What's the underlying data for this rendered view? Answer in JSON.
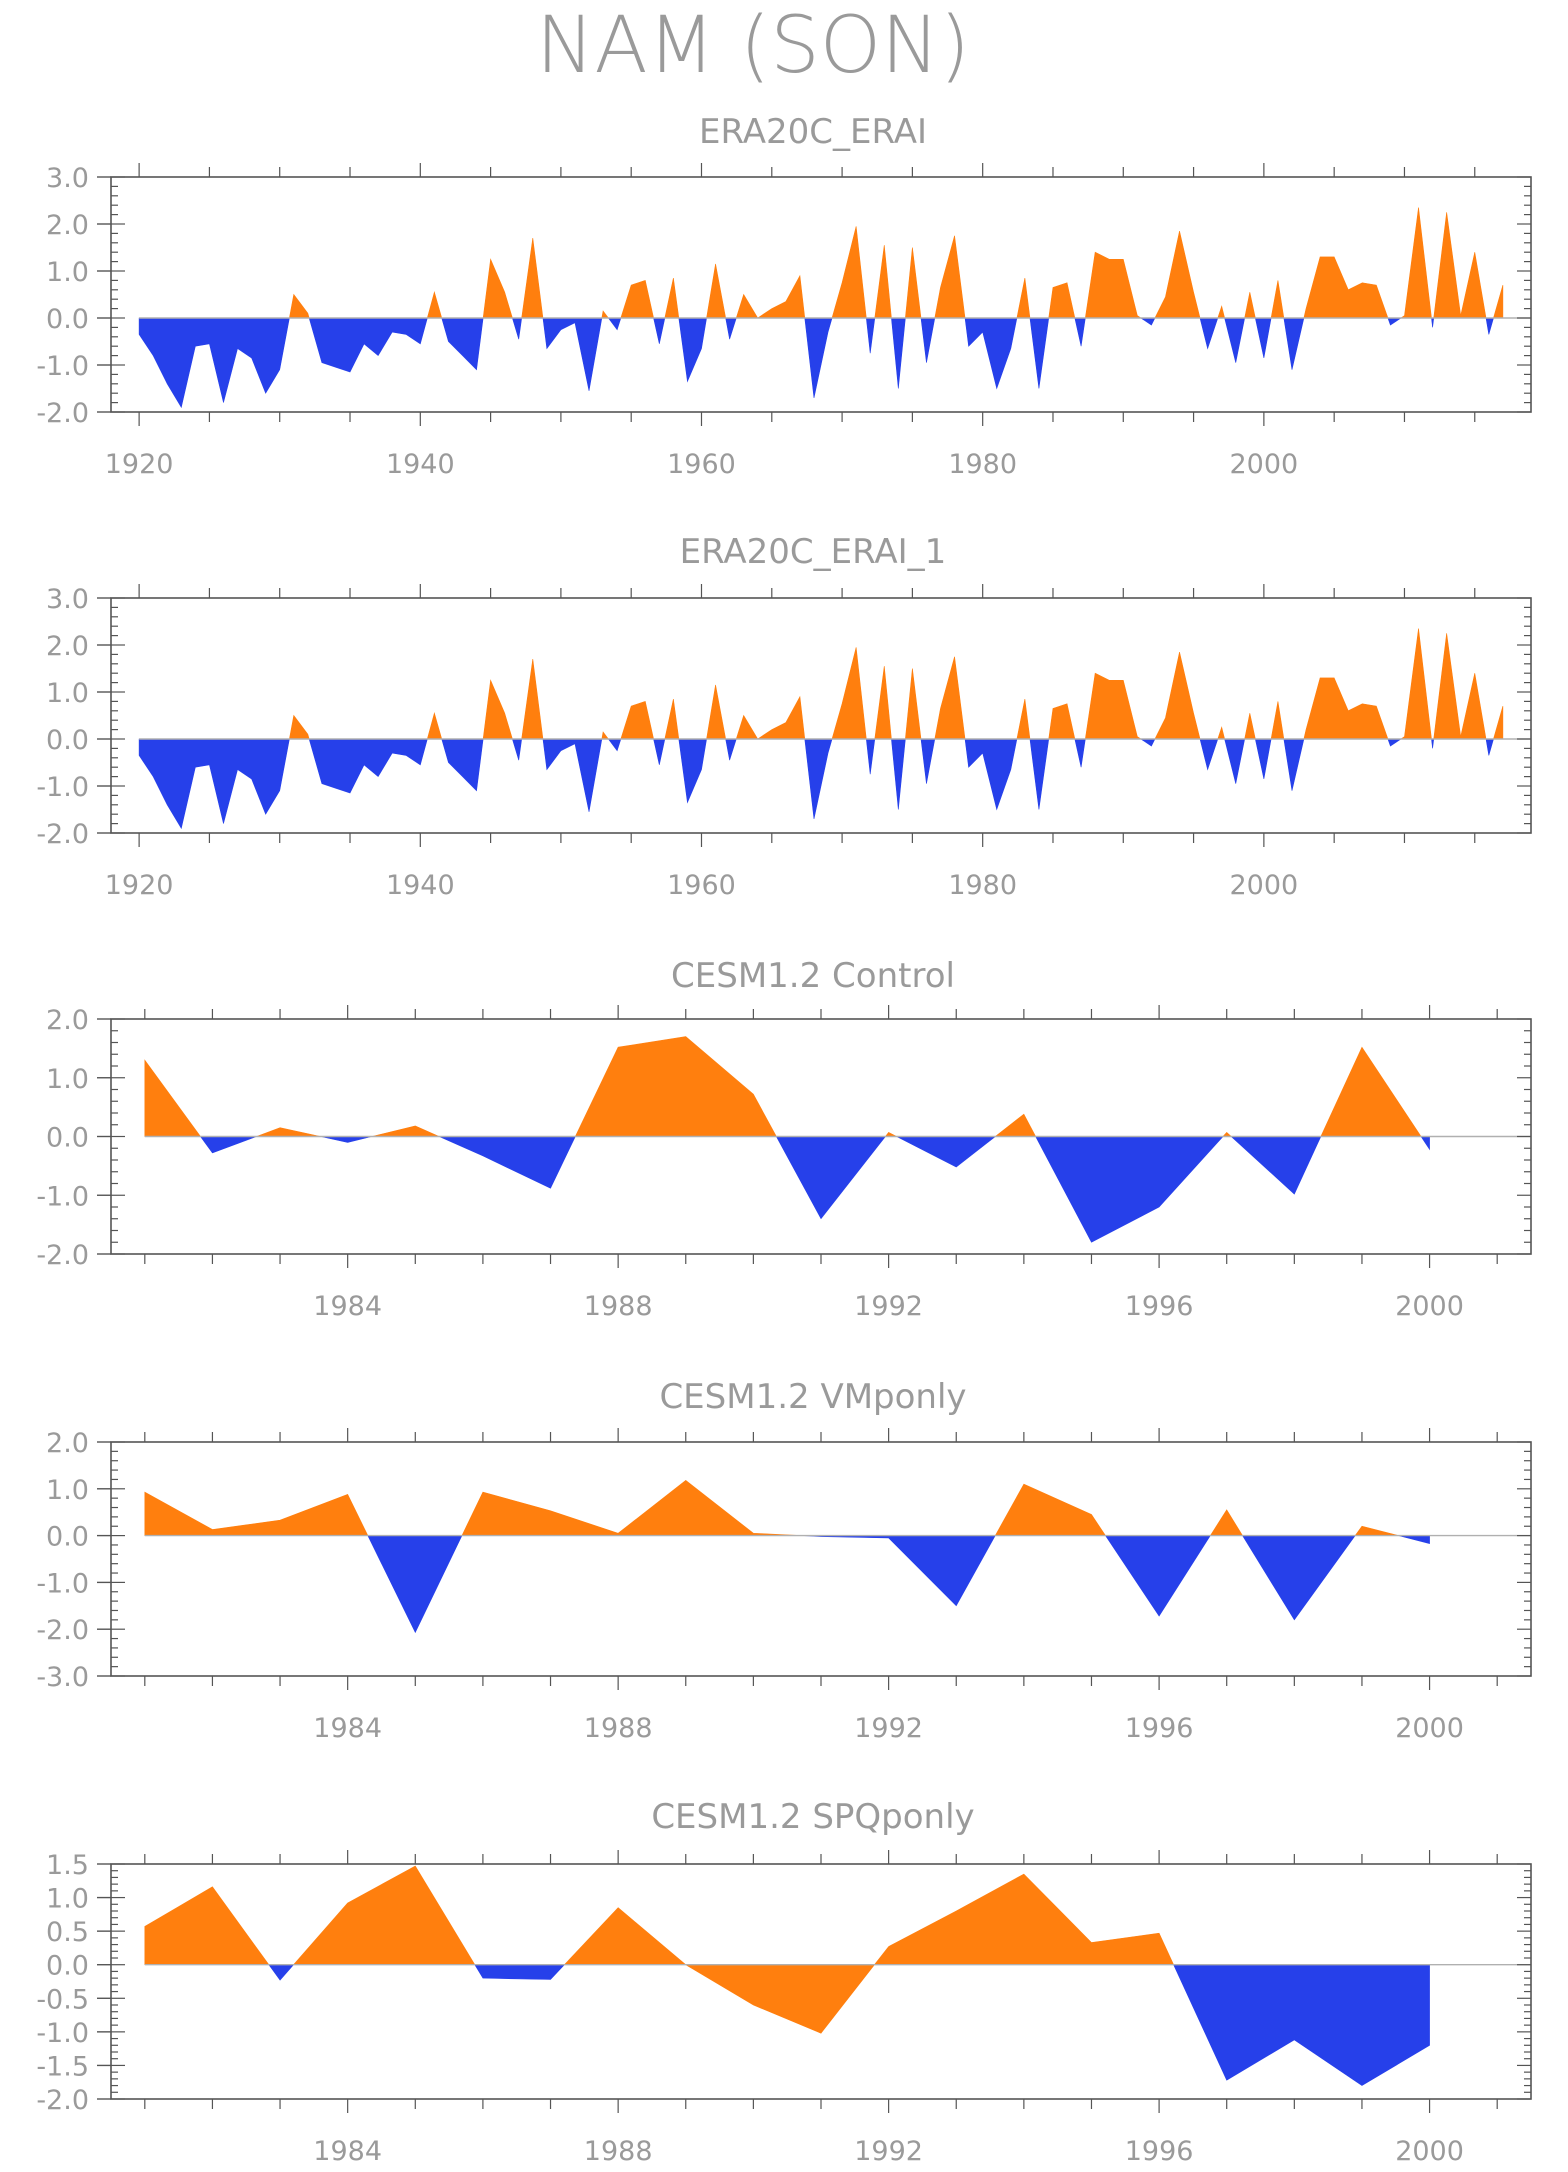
{
  "title": "NAM (SON)",
  "colors": {
    "positive": "#ff7f0e",
    "negative": "#2640ea",
    "axis": "#555555",
    "text": "#9a9a9a",
    "zero_line": "#b0b0b0"
  },
  "chart_data": [
    {
      "type": "area",
      "title": "ERA20C_ERAI",
      "xlim": [
        1918,
        2019
      ],
      "ylim": [
        -2.0,
        3.0
      ],
      "xticks": [
        1920,
        1940,
        1960,
        1980,
        2000
      ],
      "xtick_labels": [
        "1920",
        "1940",
        "1960",
        "1980",
        "2000"
      ],
      "yticks": [
        3.0,
        2.0,
        1.0,
        0.0,
        -1.0,
        -2.0
      ],
      "ytick_labels": [
        "3.0",
        "2.0",
        "1.0",
        "0.0",
        "-1.0",
        "-2.0"
      ],
      "x_start": 1920,
      "values": [
        -0.35,
        -0.8,
        -1.4,
        -1.9,
        -0.6,
        -0.55,
        -1.8,
        -0.65,
        -0.85,
        -1.6,
        -1.1,
        0.5,
        0.1,
        -0.95,
        -1.05,
        -1.15,
        -0.55,
        -0.8,
        -0.3,
        -0.35,
        -0.55,
        0.55,
        -0.5,
        -0.8,
        -1.1,
        1.25,
        0.55,
        -0.45,
        1.7,
        -0.65,
        -0.25,
        -0.1,
        -1.55,
        0.15,
        -0.25,
        0.7,
        0.8,
        -0.55,
        0.85,
        -1.35,
        -0.65,
        1.15,
        -0.45,
        0.5,
        0.0,
        0.2,
        0.35,
        0.9,
        -1.7,
        -0.3,
        0.75,
        1.95,
        -0.75,
        1.55,
        -1.5,
        1.5,
        -0.95,
        0.65,
        1.75,
        -0.6,
        -0.3,
        -1.5,
        -0.65,
        0.85,
        -1.5,
        0.65,
        0.75,
        -0.6,
        1.4,
        1.25,
        1.25,
        0.05,
        -0.15,
        0.45,
        1.85,
        0.55,
        -0.65,
        0.25,
        -0.95,
        0.55,
        -0.85,
        0.8,
        -1.1,
        0.2,
        1.3,
        1.3,
        0.6,
        0.75,
        0.7,
        -0.15,
        0.05,
        2.35,
        -0.2,
        2.25,
        0.05,
        1.4,
        -0.35,
        0.7
      ]
    },
    {
      "type": "area",
      "title": "ERA20C_ERAI_1",
      "xlim": [
        1918,
        2019
      ],
      "ylim": [
        -2.0,
        3.0
      ],
      "xticks": [
        1920,
        1940,
        1960,
        1980,
        2000
      ],
      "xtick_labels": [
        "1920",
        "1940",
        "1960",
        "1980",
        "2000"
      ],
      "yticks": [
        3.0,
        2.0,
        1.0,
        0.0,
        -1.0,
        -2.0
      ],
      "ytick_labels": [
        "3.0",
        "2.0",
        "1.0",
        "0.0",
        "-1.0",
        "-2.0"
      ],
      "x_start": 1920,
      "values": [
        -0.35,
        -0.8,
        -1.4,
        -1.9,
        -0.6,
        -0.55,
        -1.8,
        -0.65,
        -0.85,
        -1.6,
        -1.1,
        0.5,
        0.1,
        -0.95,
        -1.05,
        -1.15,
        -0.55,
        -0.8,
        -0.3,
        -0.35,
        -0.55,
        0.55,
        -0.5,
        -0.8,
        -1.1,
        1.25,
        0.55,
        -0.45,
        1.7,
        -0.65,
        -0.25,
        -0.1,
        -1.55,
        0.15,
        -0.25,
        0.7,
        0.8,
        -0.55,
        0.85,
        -1.35,
        -0.65,
        1.15,
        -0.45,
        0.5,
        0.0,
        0.2,
        0.35,
        0.9,
        -1.7,
        -0.3,
        0.75,
        1.95,
        -0.75,
        1.55,
        -1.5,
        1.5,
        -0.95,
        0.65,
        1.75,
        -0.6,
        -0.3,
        -1.5,
        -0.65,
        0.85,
        -1.5,
        0.65,
        0.75,
        -0.6,
        1.4,
        1.25,
        1.25,
        0.05,
        -0.15,
        0.45,
        1.85,
        0.55,
        -0.65,
        0.25,
        -0.95,
        0.55,
        -0.85,
        0.8,
        -1.1,
        0.2,
        1.3,
        1.3,
        0.6,
        0.75,
        0.7,
        -0.15,
        0.05,
        2.35,
        -0.2,
        2.25,
        0.05,
        1.4,
        -0.35,
        0.7
      ]
    },
    {
      "type": "area",
      "title": "CESM1.2 Control",
      "xlim": [
        1980.5,
        2001.5
      ],
      "ylim": [
        -2.0,
        2.0
      ],
      "xticks": [
        1984,
        1988,
        1992,
        1996,
        2000
      ],
      "xtick_labels": [
        "1984",
        "1988",
        "1992",
        "1996",
        "2000"
      ],
      "yticks": [
        2.0,
        1.0,
        0.0,
        -1.0,
        -2.0
      ],
      "ytick_labels": [
        "2.0",
        "1.0",
        "0.0",
        "-1.0",
        "-2.0"
      ],
      "x_start": 1981,
      "values": [
        1.3,
        -0.28,
        0.15,
        -0.1,
        0.18,
        -0.33,
        -0.88,
        1.52,
        1.7,
        0.72,
        -1.4,
        0.07,
        -0.52,
        0.38,
        -1.8,
        -1.2,
        0.07,
        -0.98,
        1.52,
        -0.22
      ]
    },
    {
      "type": "area",
      "title": "CESM1.2 VMponly",
      "xlim": [
        1980.5,
        2001.5
      ],
      "ylim": [
        -3.0,
        2.0
      ],
      "xticks": [
        1984,
        1988,
        1992,
        1996,
        2000
      ],
      "xtick_labels": [
        "1984",
        "1988",
        "1992",
        "1996",
        "2000"
      ],
      "yticks": [
        2.0,
        1.0,
        0.0,
        -1.0,
        -2.0,
        -3.0
      ],
      "ytick_labels": [
        "2.0",
        "1.0",
        "0.0",
        "-1.0",
        "-2.0",
        "-3.0"
      ],
      "x_start": 1981,
      "values": [
        0.93,
        0.13,
        0.33,
        0.88,
        -2.07,
        0.93,
        0.53,
        0.05,
        1.18,
        0.05,
        -0.02,
        -0.05,
        -1.5,
        1.1,
        0.45,
        -1.72,
        0.55,
        -1.8,
        0.2,
        -0.17
      ]
    },
    {
      "type": "area",
      "title": "CESM1.2 SPQponly",
      "xlim": [
        1980.5,
        2001.5
      ],
      "ylim": [
        -2.0,
        1.5
      ],
      "xticks": [
        1984,
        1988,
        1992,
        1996,
        2000
      ],
      "xtick_labels": [
        "1984",
        "1988",
        "1992",
        "1996",
        "2000"
      ],
      "yticks": [
        1.5,
        1.0,
        0.5,
        0.0,
        -0.5,
        -1.0,
        -1.5,
        -2.0
      ],
      "ytick_labels": [
        "1.5",
        "1.0",
        "0.5",
        "0.0",
        "-0.5",
        "-1.0",
        "-1.5",
        "-2.0"
      ],
      "x_start": 1981,
      "values": [
        0.57,
        1.16,
        -0.23,
        0.92,
        1.47,
        -0.2,
        -0.22,
        0.85,
        0.0,
        -0.6,
        -1.02,
        0.27,
        0.8,
        1.35,
        0.33,
        0.47,
        -1.72,
        -1.12,
        -1.8,
        -1.2
      ]
    }
  ]
}
